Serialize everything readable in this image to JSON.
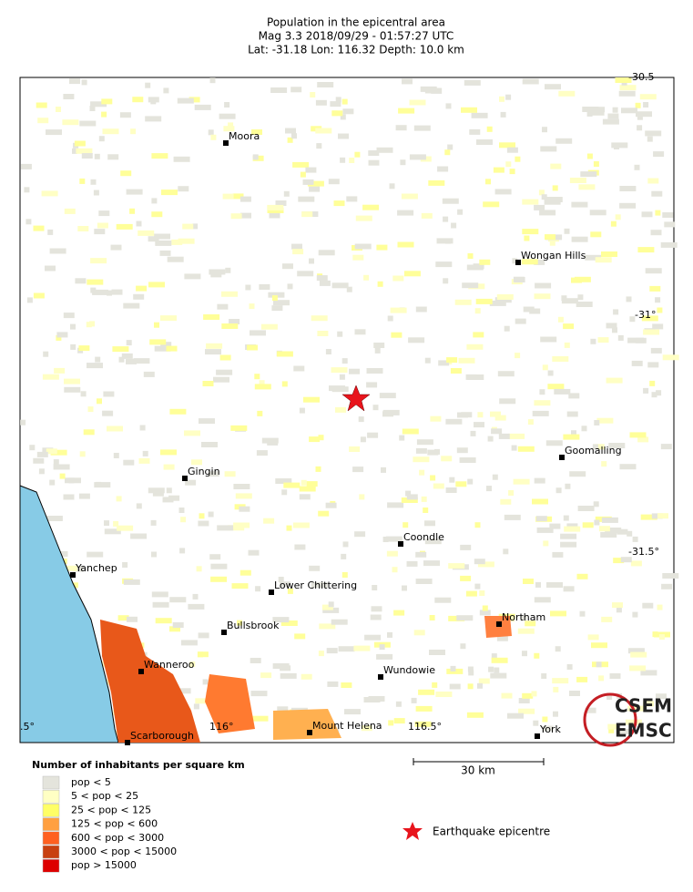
{
  "header": {
    "title": "Population in the epicentral area",
    "line2": "Mag 3.3  2018/09/29 - 01:57:27 UTC",
    "line3": "Lat: -31.18   Lon: 116.32     Depth:  10.0 km"
  },
  "map": {
    "towns": [
      {
        "label": "Moora"
      },
      {
        "label": "Wongan Hills"
      },
      {
        "label": "Gingin"
      },
      {
        "label": "Goomalling"
      },
      {
        "label": "Coondle"
      },
      {
        "label": "Yanchep"
      },
      {
        "label": "Lower Chittering"
      },
      {
        "label": "Northam"
      },
      {
        "label": "Bullsbrook"
      },
      {
        "label": "Wanneroo"
      },
      {
        "label": "Wundowie"
      },
      {
        "label": "Scarborough"
      },
      {
        "label": "Mount Helena"
      },
      {
        "label": "York"
      }
    ],
    "lat_labels": [
      "-30.5",
      "-31°",
      "-31.5°"
    ],
    "lon_labels": [
      ".5°",
      "116°",
      "116.5°"
    ]
  },
  "scale_bar": "30 km",
  "legend": {
    "title": "Number of inhabitants per square km",
    "items": [
      {
        "label": "pop < 5",
        "color": "#e4e4dc"
      },
      {
        "label": "5 < pop < 25",
        "color": "#ffffc4"
      },
      {
        "label": "25 < pop < 125",
        "color": "#ffff66"
      },
      {
        "label": "125 < pop < 600",
        "color": "#ffa040"
      },
      {
        "label": "600 < pop < 3000",
        "color": "#ff6020"
      },
      {
        "label": "3000 < pop < 15000",
        "color": "#c84010"
      },
      {
        "label": "pop > 15000",
        "color": "#dd0000"
      }
    ]
  },
  "epicentre_label": "Earthquake epicentre",
  "logo": {
    "top": "CSEM",
    "bottom": "EMSC"
  }
}
